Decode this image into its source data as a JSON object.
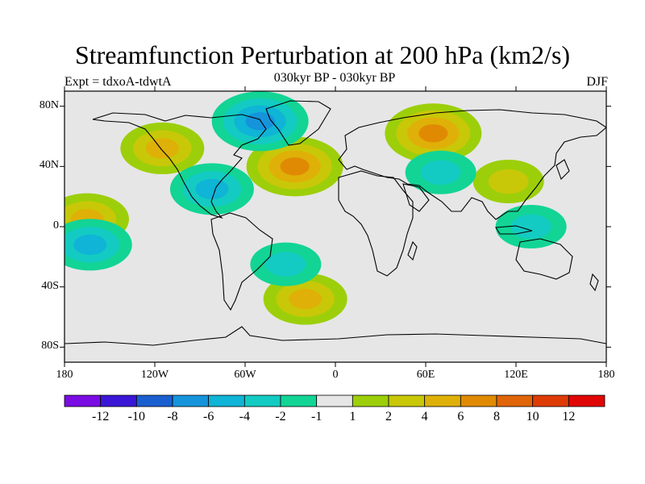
{
  "title": "Streamfunction Perturbation at 200 hPa (km2/s)",
  "experiment": "Expt = tdxoA-tdwtA",
  "subtitle": "030kyr BP - 030kyr BP",
  "season": "DJF",
  "lat_ticks": [
    "80N",
    "40N",
    "0",
    "40S",
    "80S"
  ],
  "lon_ticks": [
    "180",
    "120W",
    "60W",
    "0",
    "60E",
    "120E",
    "180"
  ],
  "colorbar": {
    "labels": [
      "-12",
      "-10",
      "-8",
      "-6",
      "-4",
      "-2",
      "-1",
      "1",
      "2",
      "4",
      "6",
      "8",
      "10",
      "12"
    ],
    "colors": [
      "#7a0ce3",
      "#3a17d6",
      "#1a5fd0",
      "#1594dc",
      "#0fb4d6",
      "#13cbc2",
      "#12d495",
      "#e6e6e6",
      "#9ccf09",
      "#c8c808",
      "#dfb008",
      "#e08a04",
      "#e06508",
      "#de3b06",
      "#e00606"
    ]
  },
  "chart_data": {
    "type": "heatmap",
    "title": "Streamfunction Perturbation at 200 hPa (km2/s)",
    "xlabel": "",
    "ylabel": "",
    "xlim": [
      -180,
      180
    ],
    "ylim": [
      -90,
      90
    ],
    "features": [
      {
        "lon": 65,
        "lat": 62,
        "value": 6
      },
      {
        "lon": -115,
        "lat": 52,
        "value": 4
      },
      {
        "lon": -27,
        "lat": 40,
        "value": 6
      },
      {
        "lon": -165,
        "lat": 5,
        "value": 4
      },
      {
        "lon": 115,
        "lat": 30,
        "value": 2
      },
      {
        "lon": -20,
        "lat": -48,
        "value": 4
      },
      {
        "lon": -50,
        "lat": 70,
        "value": -6
      },
      {
        "lon": -82,
        "lat": 25,
        "value": -4
      },
      {
        "lon": 70,
        "lat": 36,
        "value": -2
      },
      {
        "lon": -163,
        "lat": -12,
        "value": -4
      },
      {
        "lon": -33,
        "lat": -25,
        "value": -2
      },
      {
        "lon": 130,
        "lat": 0,
        "value": -2
      }
    ]
  }
}
